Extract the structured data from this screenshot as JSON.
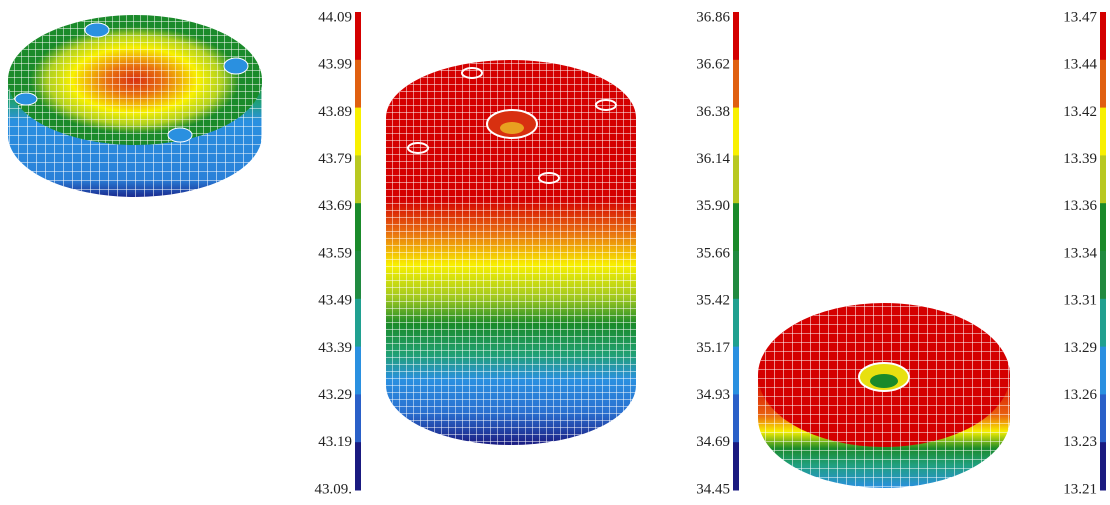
{
  "colorbars": [
    {
      "labels": [
        "44.09",
        "43.99",
        "43.89",
        "43.79",
        "43.69",
        "43.59",
        "43.49",
        "43.39",
        "43.29",
        "43.19",
        "43.09."
      ]
    },
    {
      "labels": [
        "36.86",
        "36.62",
        "36.38",
        "36.14",
        "35.90",
        "35.66",
        "35.42",
        "35.17",
        "34.93",
        "34.69",
        "34.45"
      ]
    },
    {
      "labels": [
        "13.47",
        "13.44",
        "13.42",
        "13.39",
        "13.36",
        "13.34",
        "13.31",
        "13.29",
        "13.26",
        "13.23",
        "13.21"
      ]
    }
  ]
}
